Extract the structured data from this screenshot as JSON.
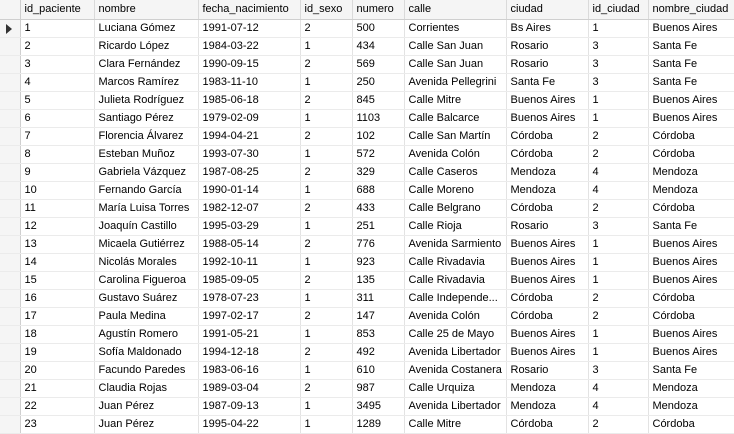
{
  "columns": [
    "id_paciente",
    "nombre",
    "fecha_nacimiento",
    "id_sexo",
    "numero",
    "calle",
    "ciudad",
    "id_ciudad",
    "nombre_ciudad"
  ],
  "rows": [
    [
      "1",
      "Luciana Gómez",
      "1991-07-12",
      "2",
      "500",
      "Corrientes",
      "Bs Aires",
      "1",
      "Buenos Aires"
    ],
    [
      "2",
      "Ricardo López",
      "1984-03-22",
      "1",
      "434",
      "Calle San Juan",
      "Rosario",
      "3",
      "Santa Fe"
    ],
    [
      "3",
      "Clara Fernández",
      "1990-09-15",
      "2",
      "569",
      "Calle San Juan",
      "Rosario",
      "3",
      "Santa Fe"
    ],
    [
      "4",
      "Marcos Ramírez",
      "1983-11-10",
      "1",
      "250",
      "Avenida Pellegrini",
      "Santa Fe",
      "3",
      "Santa Fe"
    ],
    [
      "5",
      "Julieta Rodríguez",
      "1985-06-18",
      "2",
      "845",
      "Calle Mitre",
      "Buenos Aires",
      "1",
      "Buenos Aires"
    ],
    [
      "6",
      "Santiago Pérez",
      "1979-02-09",
      "1",
      "1103",
      "Calle Balcarce",
      "Buenos Aires",
      "1",
      "Buenos Aires"
    ],
    [
      "7",
      "Florencia Álvarez",
      "1994-04-21",
      "2",
      "102",
      "Calle San Martín",
      "Córdoba",
      "2",
      "Córdoba"
    ],
    [
      "8",
      "Esteban Muñoz",
      "1993-07-30",
      "1",
      "572",
      "Avenida Colón",
      "Córdoba",
      "2",
      "Córdoba"
    ],
    [
      "9",
      "Gabriela Vázquez",
      "1987-08-25",
      "2",
      "329",
      "Calle Caseros",
      "Mendoza",
      "4",
      "Mendoza"
    ],
    [
      "10",
      "Fernando García",
      "1990-01-14",
      "1",
      "688",
      "Calle Moreno",
      "Mendoza",
      "4",
      "Mendoza"
    ],
    [
      "11",
      "María Luisa Torres",
      "1982-12-07",
      "2",
      "433",
      "Calle Belgrano",
      "Córdoba",
      "2",
      "Córdoba"
    ],
    [
      "12",
      "Joaquín Castillo",
      "1995-03-29",
      "1",
      "251",
      "Calle Rioja",
      "Rosario",
      "3",
      "Santa Fe"
    ],
    [
      "13",
      "Micaela Gutiérrez",
      "1988-05-14",
      "2",
      "776",
      "Avenida Sarmiento",
      "Buenos Aires",
      "1",
      "Buenos Aires"
    ],
    [
      "14",
      "Nicolás Morales",
      "1992-10-11",
      "1",
      "923",
      "Calle Rivadavia",
      "Buenos Aires",
      "1",
      "Buenos Aires"
    ],
    [
      "15",
      "Carolina Figueroa",
      "1985-09-05",
      "2",
      "135",
      "Calle Rivadavia",
      "Buenos Aires",
      "1",
      "Buenos Aires"
    ],
    [
      "16",
      "Gustavo Suárez",
      "1978-07-23",
      "1",
      "311",
      "Calle Independe...",
      "Córdoba",
      "2",
      "Córdoba"
    ],
    [
      "17",
      "Paula Medina",
      "1997-02-17",
      "2",
      "147",
      "Avenida Colón",
      "Córdoba",
      "2",
      "Córdoba"
    ],
    [
      "18",
      "Agustín Romero",
      "1991-05-21",
      "1",
      "853",
      "Calle 25 de Mayo",
      "Buenos Aires",
      "1",
      "Buenos Aires"
    ],
    [
      "19",
      "Sofía Maldonado",
      "1994-12-18",
      "2",
      "492",
      "Avenida Libertador",
      "Buenos Aires",
      "1",
      "Buenos Aires"
    ],
    [
      "20",
      "Facundo Paredes",
      "1983-06-16",
      "1",
      "610",
      "Avenida Costanera",
      "Rosario",
      "3",
      "Santa Fe"
    ],
    [
      "21",
      "Claudia Rojas",
      "1989-03-04",
      "2",
      "987",
      "Calle Urquiza",
      "Mendoza",
      "4",
      "Mendoza"
    ],
    [
      "22",
      "Juan Pérez",
      "1987-09-13",
      "1",
      "3495",
      "Avenida Libertador",
      "Mendoza",
      "4",
      "Mendoza"
    ],
    [
      "23",
      "Juan Pérez",
      "1995-04-22",
      "1",
      "1289",
      "Calle Mitre",
      "Córdoba",
      "2",
      "Córdoba"
    ]
  ]
}
